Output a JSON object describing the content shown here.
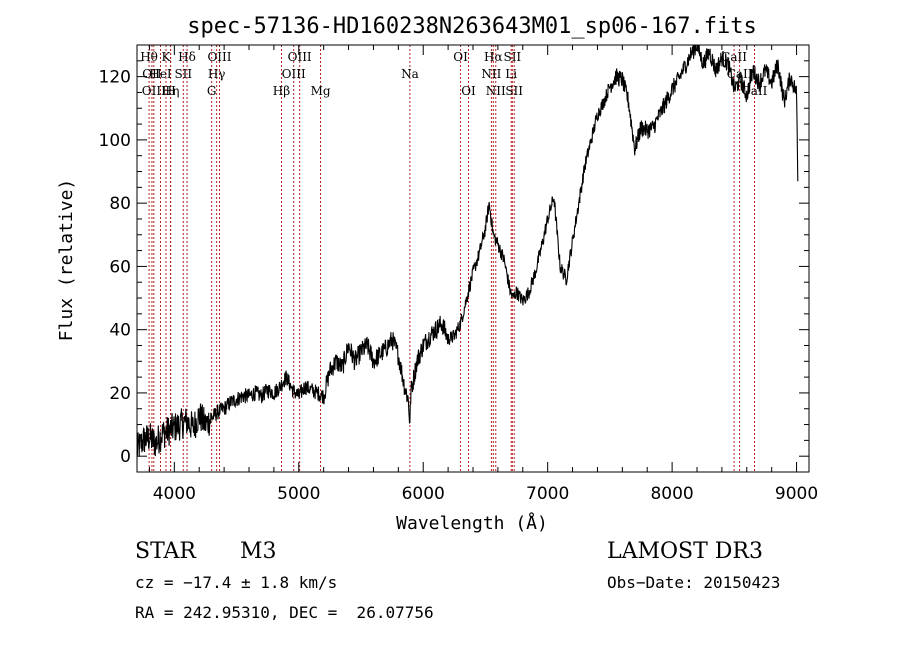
{
  "chart_data": {
    "type": "line",
    "title": "spec-57136-HD160238N263643M01_sp06-167.fits",
    "xlabel": "Wavelength (Å)",
    "ylabel": "Flux (relative)",
    "xlim": [
      3700,
      9100
    ],
    "ylim": [
      -5,
      130
    ],
    "xticks": [
      4000,
      5000,
      6000,
      7000,
      8000,
      9000
    ],
    "yticks": [
      0,
      20,
      40,
      60,
      80,
      100,
      120
    ],
    "grid": false,
    "line_color": "#000000",
    "marker_color": "#b22222",
    "spectrum": {
      "x": [
        3700,
        3750,
        3800,
        3850,
        3900,
        3950,
        4000,
        4050,
        4100,
        4150,
        4200,
        4250,
        4300,
        4350,
        4400,
        4450,
        4500,
        4550,
        4600,
        4650,
        4700,
        4750,
        4800,
        4850,
        4880,
        4900,
        4950,
        5000,
        5050,
        5100,
        5150,
        5200,
        5250,
        5300,
        5350,
        5400,
        5450,
        5500,
        5550,
        5600,
        5650,
        5700,
        5750,
        5800,
        5850,
        5880,
        5893,
        5900,
        5950,
        6000,
        6050,
        6100,
        6150,
        6200,
        6250,
        6300,
        6350,
        6400,
        6450,
        6500,
        6530,
        6563,
        6600,
        6650,
        6700,
        6720,
        6750,
        6800,
        6850,
        6900,
        6950,
        7000,
        7050,
        7100,
        7150,
        7200,
        7250,
        7300,
        7350,
        7400,
        7450,
        7500,
        7550,
        7600,
        7650,
        7700,
        7750,
        7800,
        7850,
        7900,
        7950,
        8000,
        8050,
        8100,
        8150,
        8200,
        8250,
        8300,
        8350,
        8400,
        8450,
        8500,
        8550,
        8600,
        8650,
        8700,
        8750,
        8800,
        8850,
        8900,
        8950,
        9000,
        9010
      ],
      "y": [
        2,
        5,
        6,
        4,
        7,
        8,
        9,
        10,
        11,
        9,
        13,
        10,
        12,
        14,
        15,
        17,
        18,
        19,
        19,
        20,
        19,
        21,
        20,
        22,
        24,
        25,
        21,
        19,
        22,
        21,
        20,
        19,
        27,
        30,
        28,
        35,
        30,
        33,
        35,
        30,
        32,
        34,
        37,
        32,
        22,
        18,
        10,
        20,
        30,
        35,
        38,
        40,
        42,
        37,
        38,
        42,
        50,
        58,
        64,
        72,
        80,
        70,
        67,
        62,
        52,
        50,
        52,
        49,
        52,
        58,
        66,
        75,
        82,
        60,
        56,
        68,
        80,
        92,
        100,
        108,
        112,
        117,
        120,
        119,
        112,
        97,
        104,
        103,
        104,
        108,
        112,
        116,
        119,
        123,
        127,
        130,
        124,
        128,
        122,
        126,
        124,
        116,
        119,
        114,
        122,
        118,
        122,
        118,
        124,
        112,
        120,
        115,
        88
      ]
    },
    "lines": [
      {
        "w": 3797,
        "label": "Hθ",
        "row": 0
      },
      {
        "w": 3820,
        "label": "OII",
        "row": 1
      },
      {
        "w": 3835,
        "label": "OIII",
        "row": 2
      },
      {
        "w": 3889,
        "label": "HeI",
        "row": 1
      },
      {
        "w": 3933,
        "label": "K",
        "row": 0
      },
      {
        "w": 3970,
        "label": "Hη",
        "row": 2
      },
      {
        "w": 3970,
        "label": "H",
        "row": 2
      },
      {
        "w": 4072,
        "label": "SII",
        "row": 1
      },
      {
        "w": 4102,
        "label": "Hδ",
        "row": 0
      },
      {
        "w": 4300,
        "label": "G",
        "row": 2
      },
      {
        "w": 4340,
        "label": "Hγ",
        "row": 1
      },
      {
        "w": 4363,
        "label": "OIII",
        "row": 0
      },
      {
        "w": 4861,
        "label": "Hβ",
        "row": 2
      },
      {
        "w": 4959,
        "label": "OIII",
        "row": 1
      },
      {
        "w": 5007,
        "label": "OIII",
        "row": 0
      },
      {
        "w": 5175,
        "label": "Mg",
        "row": 2
      },
      {
        "w": 5893,
        "label": "Na",
        "row": 1
      },
      {
        "w": 6300,
        "label": "OI",
        "row": 0
      },
      {
        "w": 6364,
        "label": "OI",
        "row": 2
      },
      {
        "w": 6548,
        "label": "NII",
        "row": 1
      },
      {
        "w": 6563,
        "label": "Hα",
        "row": 0
      },
      {
        "w": 6583,
        "label": "NII",
        "row": 2
      },
      {
        "w": 6707,
        "label": "Li",
        "row": 1
      },
      {
        "w": 6716,
        "label": "SII",
        "row": 0
      },
      {
        "w": 6731,
        "label": "SII",
        "row": 2
      },
      {
        "w": 8498,
        "label": "CaII",
        "row": 0
      },
      {
        "w": 8542,
        "label": "CaII",
        "row": 1
      },
      {
        "w": 8662,
        "label": "CaII",
        "row": 2
      }
    ]
  },
  "info": {
    "object_class": "STAR",
    "subclass": "M3",
    "survey": "LAMOST DR3",
    "cz": "cz = −17.4 ± 1.8 km/s",
    "obs_date": "Obs−Date: 20150423",
    "coords": "RA = 242.95310, DEC =  26.07756"
  }
}
